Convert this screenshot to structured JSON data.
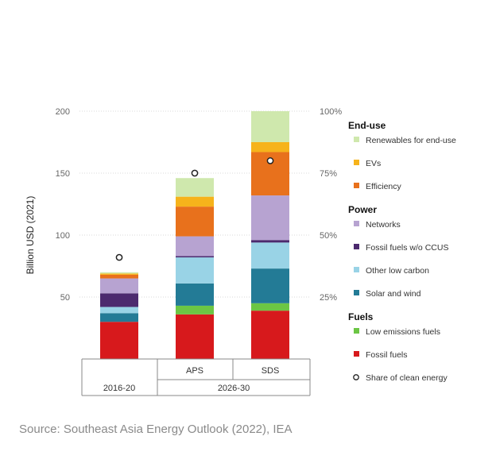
{
  "chart_data": {
    "type": "bar",
    "stacked": true,
    "ylabel": "Billion USD (2021)",
    "ylim": [
      0,
      200
    ],
    "left_ticks": [
      "50",
      "100",
      "150",
      "200"
    ],
    "right_ticks": [
      "25%",
      "50%",
      "75%",
      "100%"
    ],
    "secondary_ylim": [
      0,
      100
    ],
    "categories": [
      "",
      "APS",
      "SDS"
    ],
    "groups": [
      {
        "label": "2016-20",
        "columns": 1
      },
      {
        "label": "2026-30",
        "columns": 2
      }
    ],
    "series": [
      {
        "name": "Fossil fuels",
        "key": "fossil",
        "values": [
          30,
          36,
          39
        ]
      },
      {
        "name": "Low emissions fuels",
        "key": "lowem",
        "values": [
          0,
          7,
          6
        ]
      },
      {
        "name": "Solar and wind",
        "key": "solar",
        "values": [
          7,
          18,
          28
        ]
      },
      {
        "name": "Other low carbon",
        "key": "otherlow",
        "values": [
          5,
          21,
          21
        ]
      },
      {
        "name": "Fossil fuels w/o CCUS",
        "key": "ffccus",
        "values": [
          11,
          1,
          2
        ]
      },
      {
        "name": "Networks",
        "key": "networks",
        "values": [
          12,
          16,
          36
        ]
      },
      {
        "name": "Efficiency",
        "key": "efficiency",
        "values": [
          3,
          24,
          35
        ]
      },
      {
        "name": "EVs",
        "key": "evs",
        "values": [
          1,
          8,
          8
        ]
      },
      {
        "name": "Renewables for end-use",
        "key": "renew",
        "values": [
          1,
          15,
          25
        ]
      }
    ],
    "share_of_clean_energy": {
      "name": "Share of clean energy",
      "unit": "%",
      "values": [
        41,
        75,
        80
      ]
    },
    "legend": [
      {
        "heading": "End-use",
        "items": [
          {
            "label": "Renewables for end-use",
            "key": "renew"
          },
          {
            "label": "EVs",
            "key": "evs"
          },
          {
            "label": "Efficiency",
            "key": "efficiency"
          }
        ]
      },
      {
        "heading": "Power",
        "items": [
          {
            "label": "Networks",
            "key": "networks"
          },
          {
            "label": "Fossil fuels w/o CCUS",
            "key": "ffccus"
          },
          {
            "label": "Other low carbon",
            "key": "otherlow"
          },
          {
            "label": "Solar and wind",
            "key": "solar"
          }
        ]
      },
      {
        "heading": "Fuels",
        "items": [
          {
            "label": "Low emissions fuels",
            "key": "lowem"
          },
          {
            "label": "Fossil fuels",
            "key": "fossil"
          },
          {
            "label": "Share of clean energy",
            "key": "marker"
          }
        ]
      }
    ],
    "colors": {
      "fossil": "#d7191c",
      "lowem": "#6cc644",
      "solar": "#237b96",
      "otherlow": "#99d3e6",
      "ffccus": "#4c2a6e",
      "networks": "#b7a3d1",
      "efficiency": "#e8711c",
      "evs": "#f6b31b",
      "renew": "#cfe8ad"
    }
  },
  "source": "Source: Southeast Asia Energy Outlook (2022), IEA"
}
